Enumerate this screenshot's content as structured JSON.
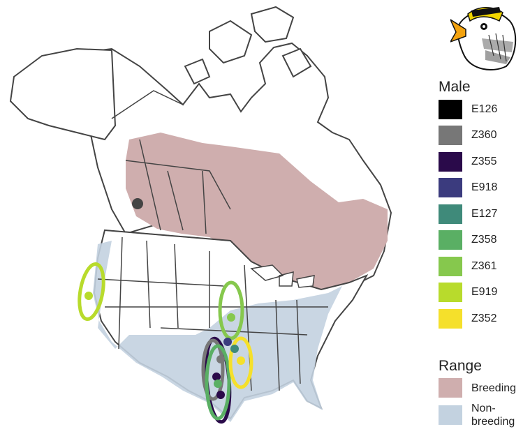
{
  "legend": {
    "title": "Male",
    "items": [
      {
        "label": "E126",
        "color": "#000000"
      },
      {
        "label": "Z360",
        "color": "#777777"
      },
      {
        "label": "Z355",
        "color": "#2a0a4a"
      },
      {
        "label": "E918",
        "color": "#3b3b7e"
      },
      {
        "label": "E127",
        "color": "#3f8a7a"
      },
      {
        "label": "Z358",
        "color": "#5aaf64"
      },
      {
        "label": "Z361",
        "color": "#86c84d"
      },
      {
        "label": "E919",
        "color": "#b8db2c"
      },
      {
        "label": "Z352",
        "color": "#f5e02b"
      }
    ]
  },
  "range": {
    "title": "Range",
    "items": [
      {
        "label": "Breeding",
        "color": "#cfaeae"
      },
      {
        "label": "Non-\nbreeding",
        "color": "#c3d2e0"
      }
    ]
  },
  "icon": "white-throated-sparrow-head-icon"
}
